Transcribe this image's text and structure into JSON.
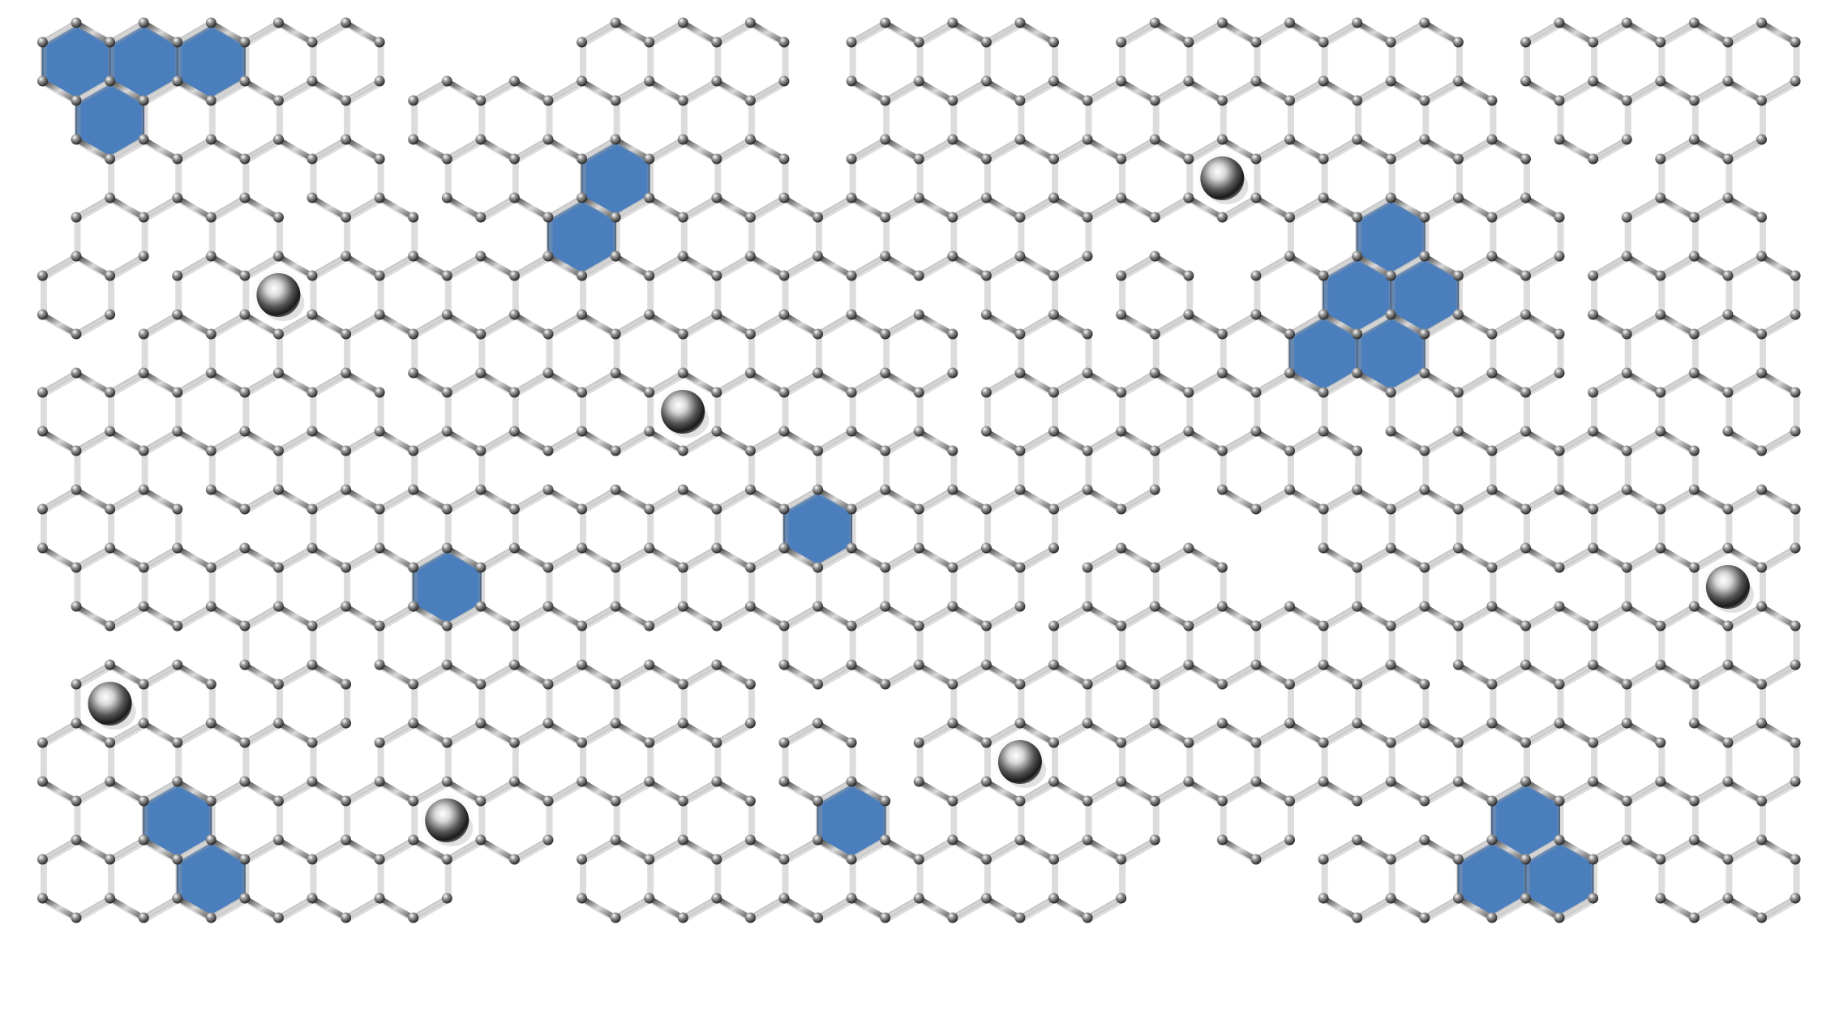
{
  "scene": {
    "subject": "hexagonal-lattice-with-highlighted-cells",
    "colors": {
      "background": "#ffffff",
      "bond": "#6b6b6b",
      "atom": "#3a3a3a",
      "highlight": "#4a7ebd",
      "highlight_edge": "#2b4d7a",
      "sphere": "#cfcfcf"
    }
  }
}
